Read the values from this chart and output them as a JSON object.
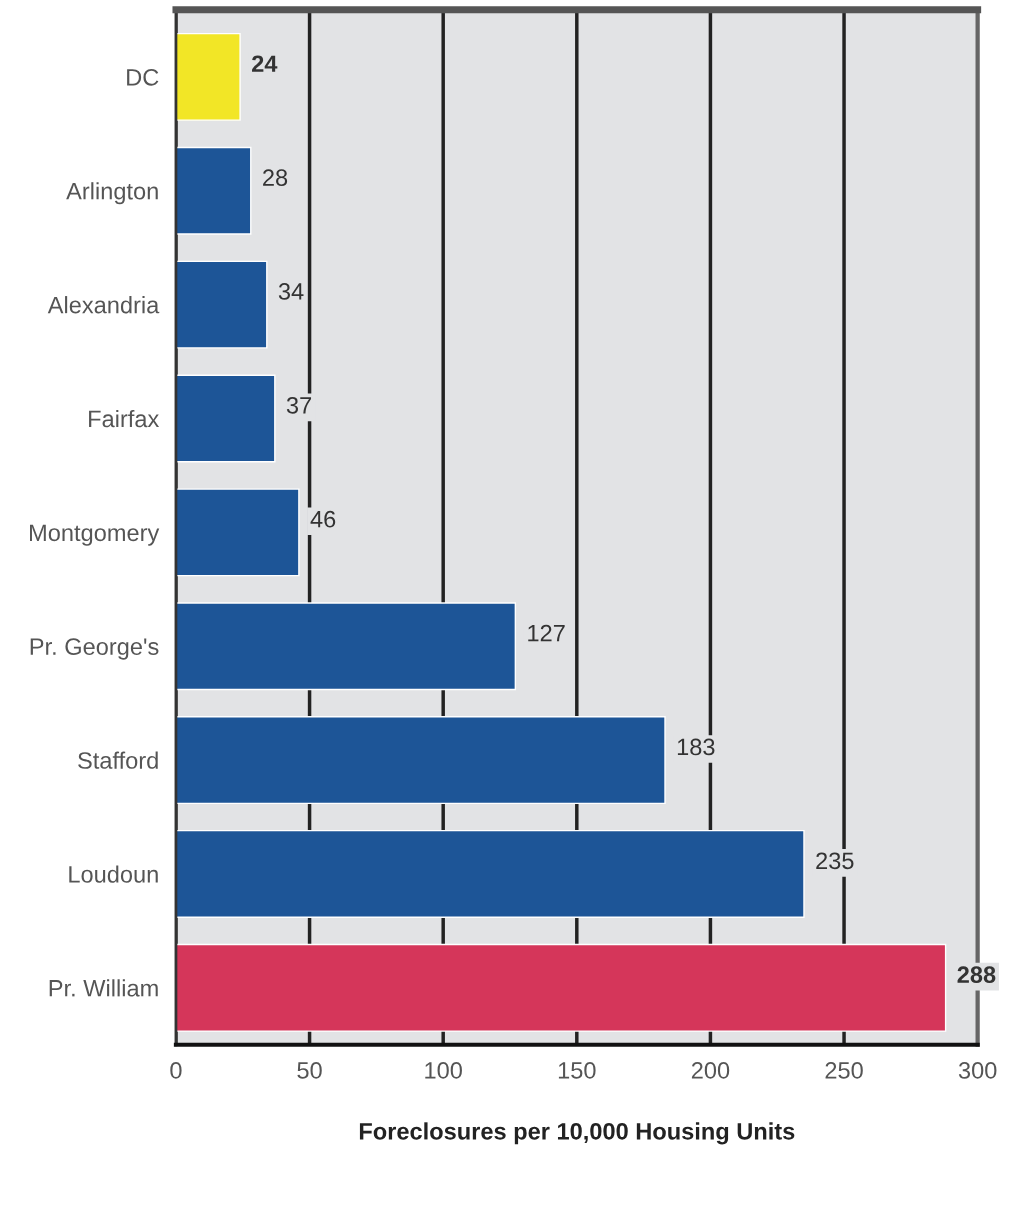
{
  "chart_data": {
    "type": "bar",
    "orientation": "horizontal",
    "xlabel": "Foreclosures per 10,000 Housing Units",
    "categories": [
      "DC",
      "Arlington",
      "Alexandria",
      "Fairfax",
      "Montgomery",
      "Pr. George's",
      "Stafford",
      "Loudoun",
      "Pr. William"
    ],
    "values": [
      24,
      28,
      34,
      37,
      46,
      127,
      183,
      235,
      288
    ],
    "colors": [
      "#f2e626",
      "#1d5597",
      "#1d5597",
      "#1d5597",
      "#1d5597",
      "#1d5597",
      "#1d5597",
      "#1d5597",
      "#d5365a"
    ],
    "xlim": [
      0,
      300
    ],
    "xticks": [
      0,
      50,
      100,
      150,
      200,
      250,
      300
    ],
    "grid": "x",
    "data_labels": true
  }
}
